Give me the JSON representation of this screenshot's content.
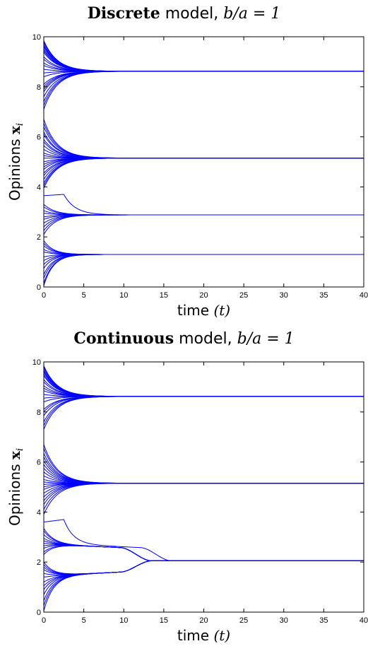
{
  "chart_data": [
    {
      "type": "line",
      "title_bold": "Discrete",
      "title_rest": "model,",
      "title_math": "b/a = 1",
      "xlabel": "time",
      "xlabel_math": "(t)",
      "ylabel": "Opinions",
      "ylabel_math": "x",
      "ylabel_sub": "i",
      "xlim": [
        0,
        40
      ],
      "ylim": [
        0,
        10
      ],
      "xticks": [
        0,
        5,
        10,
        15,
        20,
        25,
        30,
        35,
        40
      ],
      "yticks": [
        0,
        2,
        4,
        6,
        8,
        10
      ],
      "line_color": "#0000ff",
      "clusters": [
        {
          "final": 8.62,
          "converge_t": 7,
          "bumps": [],
          "initial": [
            9.85,
            9.8,
            9.72,
            9.65,
            9.6,
            9.52,
            9.45,
            9.38,
            9.2,
            9.1,
            8.95,
            8.85,
            8.7,
            8.55,
            8.4,
            8.1,
            8.0,
            7.9,
            7.8,
            7.6,
            7.4,
            7.25,
            7.1
          ]
        },
        {
          "final": 5.15,
          "converge_t": 7,
          "bumps": [],
          "initial": [
            6.7,
            6.55,
            6.4,
            6.2,
            6.1,
            5.9,
            5.8,
            5.65,
            5.5,
            5.35,
            5.25,
            5.15,
            5.0,
            4.9,
            4.8,
            4.7,
            4.55,
            4.45,
            4.3,
            4.15,
            4.05,
            3.95
          ]
        },
        {
          "final": 2.88,
          "converge_t": 6,
          "bumps": [
            {
              "start": 3.65,
              "peak": 3.7,
              "peak_t": 2.5
            }
          ],
          "initial": [
            3.3,
            3.2,
            3.05,
            2.95,
            2.8,
            2.7,
            2.55,
            2.4,
            2.25,
            2.1
          ]
        },
        {
          "final": 1.3,
          "converge_t": 5,
          "bumps": [],
          "initial": [
            1.85,
            1.75,
            1.65,
            1.5,
            1.4,
            1.2,
            1.05,
            0.9,
            0.75,
            0.5,
            0.35,
            0.15,
            0.05
          ]
        }
      ],
      "merge": null
    },
    {
      "type": "line",
      "title_bold": "Continuous",
      "title_rest": "model,",
      "title_math": "b/a = 1",
      "xlabel": "time",
      "xlabel_math": "(t)",
      "ylabel": "Opinions",
      "ylabel_math": "x",
      "ylabel_sub": "i",
      "xlim": [
        0,
        40
      ],
      "ylim": [
        0,
        10
      ],
      "xticks": [
        0,
        5,
        10,
        15,
        20,
        25,
        30,
        35,
        40
      ],
      "yticks": [
        0,
        2,
        4,
        6,
        8,
        10
      ],
      "line_color": "#0000ff",
      "clusters": [
        {
          "final": 8.62,
          "converge_t": 7,
          "bumps": [],
          "initial": [
            9.85,
            9.8,
            9.72,
            9.65,
            9.6,
            9.52,
            9.45,
            9.3,
            9.2,
            9.05,
            8.95,
            8.85,
            8.7,
            8.55,
            8.4,
            8.1,
            8.0,
            7.85,
            7.6,
            7.45,
            7.3
          ]
        },
        {
          "final": 5.15,
          "converge_t": 7,
          "bumps": [],
          "initial": [
            6.7,
            6.55,
            6.35,
            6.2,
            6.05,
            5.9,
            5.75,
            5.6,
            5.45,
            5.3,
            5.2,
            5.1,
            5.0,
            4.9,
            4.75,
            4.6,
            4.45,
            4.3,
            4.1,
            3.9
          ]
        },
        {
          "final": 2.72,
          "converge_t": 5,
          "bumps": [
            {
              "start": 3.6,
              "peak": 3.7,
              "peak_t": 2.5
            }
          ],
          "initial": [
            3.35,
            3.25,
            3.1,
            2.95,
            2.85,
            2.75,
            2.65,
            2.55,
            2.4,
            2.3
          ]
        },
        {
          "final": 1.45,
          "converge_t": 5,
          "bumps": [],
          "initial": [
            2.0,
            1.9,
            1.8,
            1.7,
            1.55,
            1.4,
            1.2,
            1.05,
            0.9,
            0.7,
            0.45,
            0.25,
            0.05
          ]
        }
      ],
      "merge": {
        "clusters": [
          2,
          3
        ],
        "start_t": 9.5,
        "upper_at_start": 2.58,
        "lower_at_start": 1.6,
        "final": 2.05,
        "end_t": 13.5
      }
    }
  ]
}
